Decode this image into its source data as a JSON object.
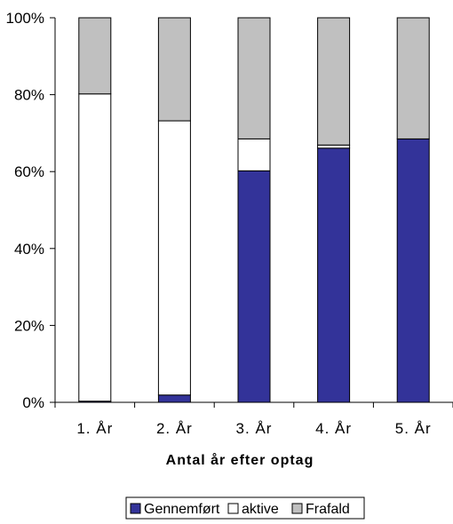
{
  "chart_data": {
    "type": "bar",
    "stacked": true,
    "percent": true,
    "title": "",
    "xlabel": "Antal år efter optag",
    "ylabel": "",
    "categories": [
      "1. År",
      "2. År",
      "3. År",
      "4. År",
      "5. År"
    ],
    "yticks": [
      "0%",
      "20%",
      "40%",
      "60%",
      "80%",
      "100%"
    ],
    "ylim": [
      0,
      100
    ],
    "grid": false,
    "legend_position": "bottom",
    "series": [
      {
        "name": "Gennemført",
        "color": "#333399",
        "values": [
          0.3,
          1.9,
          60.2,
          66.1,
          68.5
        ]
      },
      {
        "name": "aktive",
        "color": "#ffffff",
        "values": [
          79.9,
          71.3,
          8.3,
          0.8,
          0.0
        ]
      },
      {
        "name": "Frafald",
        "color": "#c0c0c0",
        "values": [
          19.8,
          26.8,
          31.5,
          33.1,
          31.5
        ]
      }
    ]
  }
}
